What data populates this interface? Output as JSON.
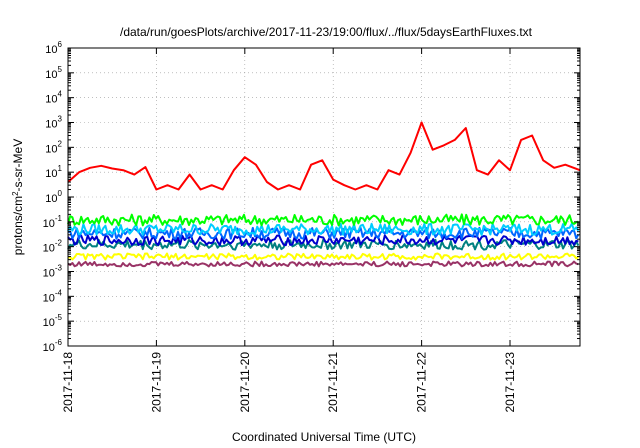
{
  "chart_data": {
    "type": "line",
    "title": "/data/run/goesPlots/archive/2017-11-23/19:00/flux/../flux/5daysEarthFluxes.txt",
    "xlabel": "Coordinated Universal Time (UTC)",
    "ylabel": {
      "prefix": "protons/cm",
      "sup": "2",
      "suffix": "-s-sr-MeV"
    },
    "y_scale": "log",
    "ylim": [
      1e-06,
      1000000.0
    ],
    "y_ticks": [
      {
        "base": "10",
        "exp": "-6"
      },
      {
        "base": "10",
        "exp": "-5"
      },
      {
        "base": "10",
        "exp": "-4"
      },
      {
        "base": "10",
        "exp": "-3"
      },
      {
        "base": "10",
        "exp": "-2"
      },
      {
        "base": "10",
        "exp": "-1"
      },
      {
        "base": "10",
        "exp": "0"
      },
      {
        "base": "10",
        "exp": "1"
      },
      {
        "base": "10",
        "exp": "2"
      },
      {
        "base": "10",
        "exp": "3"
      },
      {
        "base": "10",
        "exp": "4"
      },
      {
        "base": "10",
        "exp": "5"
      },
      {
        "base": "10",
        "exp": "6"
      }
    ],
    "x_ticks": [
      "2017-11-18",
      "2017-11-19",
      "2017-11-20",
      "2017-11-21",
      "2017-11-22",
      "2017-11-23"
    ],
    "x_start": "2017-11-18T00:00",
    "x_end": "2017-11-23T19:00",
    "grid": true,
    "series": [
      {
        "color": "#ff0000",
        "x": [
          "2017-11-18T00:00",
          "2017-11-18T03:00",
          "2017-11-18T06:00",
          "2017-11-18T09:00",
          "2017-11-18T12:00",
          "2017-11-18T15:00",
          "2017-11-18T18:00",
          "2017-11-18T21:00",
          "2017-11-19T00:00",
          "2017-11-19T03:00",
          "2017-11-19T06:00",
          "2017-11-19T09:00",
          "2017-11-19T12:00",
          "2017-11-19T15:00",
          "2017-11-19T18:00",
          "2017-11-19T21:00",
          "2017-11-20T00:00",
          "2017-11-20T03:00",
          "2017-11-20T06:00",
          "2017-11-20T09:00",
          "2017-11-20T12:00",
          "2017-11-20T15:00",
          "2017-11-20T18:00",
          "2017-11-20T21:00",
          "2017-11-21T00:00",
          "2017-11-21T03:00",
          "2017-11-21T06:00",
          "2017-11-21T09:00",
          "2017-11-21T12:00",
          "2017-11-21T15:00",
          "2017-11-21T18:00",
          "2017-11-21T21:00",
          "2017-11-22T00:00",
          "2017-11-22T03:00",
          "2017-11-22T06:00",
          "2017-11-22T09:00",
          "2017-11-22T12:00",
          "2017-11-22T15:00",
          "2017-11-22T18:00",
          "2017-11-22T21:00",
          "2017-11-23T00:00",
          "2017-11-23T03:00",
          "2017-11-23T06:00",
          "2017-11-23T09:00",
          "2017-11-23T12:00",
          "2017-11-23T15:00",
          "2017-11-23T19:00"
        ],
        "y": [
          4,
          10,
          15,
          18,
          14,
          12,
          8,
          16,
          2,
          3,
          2,
          8,
          2,
          3,
          2,
          12,
          40,
          20,
          4,
          2,
          3,
          2,
          20,
          30,
          5,
          3,
          2,
          3,
          2,
          12,
          8,
          60,
          1000,
          80,
          120,
          200,
          600,
          12,
          8,
          30,
          12,
          200,
          300,
          30,
          15,
          20,
          12
        ]
      },
      {
        "color": "#00ff00",
        "x": [
          "2017-11-18T00:00",
          "2017-11-23T19:00"
        ],
        "y": [
          0.12,
          0.12
        ],
        "jitter": 0.45
      },
      {
        "color": "#00ccff",
        "x": [
          "2017-11-18T00:00",
          "2017-11-23T19:00"
        ],
        "y": [
          0.05,
          0.05
        ],
        "jitter": 0.45
      },
      {
        "color": "#0066ff",
        "x": [
          "2017-11-18T00:00",
          "2017-11-23T19:00"
        ],
        "y": [
          0.035,
          0.035
        ],
        "jitter": 0.45
      },
      {
        "color": "#0000cc",
        "x": [
          "2017-11-18T00:00",
          "2017-11-23T19:00"
        ],
        "y": [
          0.018,
          0.018
        ],
        "jitter": 0.4
      },
      {
        "color": "#008080",
        "x": [
          "2017-11-18T00:00",
          "2017-11-23T19:00"
        ],
        "y": [
          0.012,
          0.012
        ],
        "jitter": 0.4
      },
      {
        "color": "#ffff00",
        "x": [
          "2017-11-18T00:00",
          "2017-11-23T19:00"
        ],
        "y": [
          0.004,
          0.004
        ],
        "jitter": 0.25
      },
      {
        "color": "#993366",
        "x": [
          "2017-11-18T00:00",
          "2017-11-23T19:00"
        ],
        "y": [
          0.002,
          0.002
        ],
        "jitter": 0.2
      }
    ]
  }
}
